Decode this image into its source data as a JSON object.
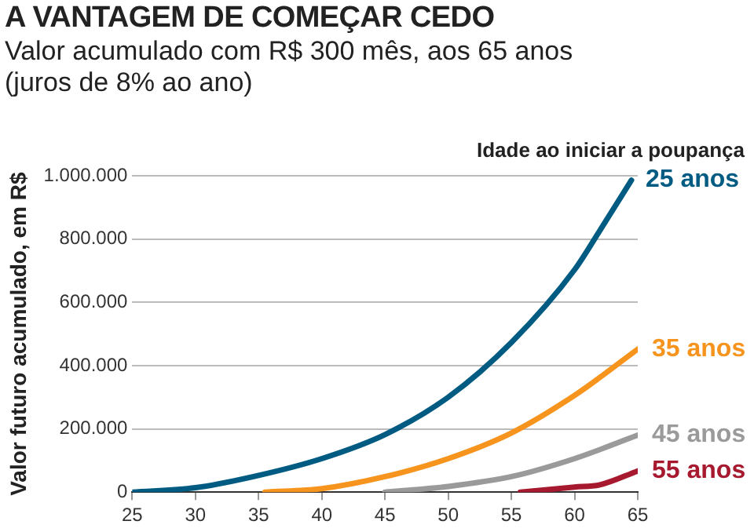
{
  "chart_data": {
    "type": "line",
    "title": "A VANTAGEM DE COMEÇAR CEDO",
    "subtitle": "Valor acumulado com R$ 300 mês, aos 65 anos (juros de 8% ao ano)",
    "ylabel": "Valor futuro acumulado, em R$",
    "legend_title": "Idade ao iniciar a poupança",
    "xlim": [
      25,
      65
    ],
    "xticks": [
      25,
      30,
      35,
      40,
      45,
      50,
      55,
      60,
      65
    ],
    "ylim": [
      0,
      1000000
    ],
    "yticks": [
      {
        "value": 0,
        "label": "0"
      },
      {
        "value": 200000,
        "label": "200.000"
      },
      {
        "value": 400000,
        "label": "400.000"
      },
      {
        "value": 600000,
        "label": "600.000"
      },
      {
        "value": 800000,
        "label": "800.000"
      },
      {
        "value": 1000000,
        "label": "1.000.000"
      }
    ],
    "grid": "y",
    "legend": false,
    "marker": "none",
    "line_style": "solid",
    "series": [
      {
        "name": "25 anos",
        "color": "#005b82",
        "x": [
          25,
          30,
          35,
          40,
          45,
          50,
          55,
          60,
          62,
          64.5
        ],
        "values": [
          0,
          14000,
          53000,
          106000,
          182000,
          300000,
          473000,
          703000,
          827000,
          986000
        ]
      },
      {
        "name": "35 anos",
        "color": "#f7941d",
        "x": [
          35.5,
          40,
          45,
          50,
          55,
          60,
          65
        ],
        "values": [
          0,
          11000,
          49000,
          106000,
          187000,
          306000,
          452000
        ]
      },
      {
        "name": "45 anos",
        "color": "#9a9a9a",
        "x": [
          45,
          50,
          55,
          60,
          65
        ],
        "values": [
          0,
          18000,
          49000,
          106000,
          180000
        ]
      },
      {
        "name": "55 anos",
        "color": "#a6192e",
        "x": [
          55.7,
          60,
          62,
          65
        ],
        "values": [
          0,
          16000,
          23000,
          67000
        ]
      }
    ]
  }
}
